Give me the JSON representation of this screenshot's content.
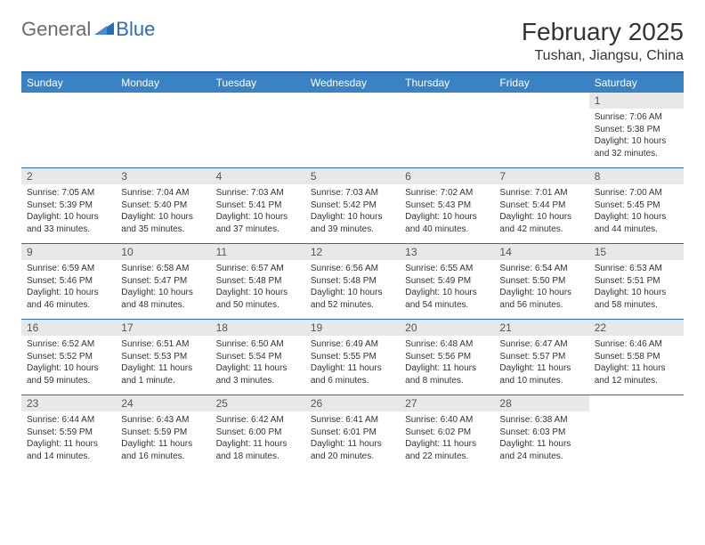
{
  "logo": {
    "general": "General",
    "blue": "Blue"
  },
  "title": "February 2025",
  "location": "Tushan, Jiangsu, China",
  "colors": {
    "header_bg": "#3b82c4",
    "divider": "#2a6db5",
    "day_num_bg": "#e8e8e8",
    "logo_gray": "#6b6b6b",
    "logo_blue": "#2a6db5"
  },
  "day_headers": [
    "Sunday",
    "Monday",
    "Tuesday",
    "Wednesday",
    "Thursday",
    "Friday",
    "Saturday"
  ],
  "weeks": [
    [
      null,
      null,
      null,
      null,
      null,
      null,
      {
        "n": "1",
        "sunrise": "7:06 AM",
        "sunset": "5:38 PM",
        "daylight": "10 hours and 32 minutes."
      }
    ],
    [
      {
        "n": "2",
        "sunrise": "7:05 AM",
        "sunset": "5:39 PM",
        "daylight": "10 hours and 33 minutes."
      },
      {
        "n": "3",
        "sunrise": "7:04 AM",
        "sunset": "5:40 PM",
        "daylight": "10 hours and 35 minutes."
      },
      {
        "n": "4",
        "sunrise": "7:03 AM",
        "sunset": "5:41 PM",
        "daylight": "10 hours and 37 minutes."
      },
      {
        "n": "5",
        "sunrise": "7:03 AM",
        "sunset": "5:42 PM",
        "daylight": "10 hours and 39 minutes."
      },
      {
        "n": "6",
        "sunrise": "7:02 AM",
        "sunset": "5:43 PM",
        "daylight": "10 hours and 40 minutes."
      },
      {
        "n": "7",
        "sunrise": "7:01 AM",
        "sunset": "5:44 PM",
        "daylight": "10 hours and 42 minutes."
      },
      {
        "n": "8",
        "sunrise": "7:00 AM",
        "sunset": "5:45 PM",
        "daylight": "10 hours and 44 minutes."
      }
    ],
    [
      {
        "n": "9",
        "sunrise": "6:59 AM",
        "sunset": "5:46 PM",
        "daylight": "10 hours and 46 minutes."
      },
      {
        "n": "10",
        "sunrise": "6:58 AM",
        "sunset": "5:47 PM",
        "daylight": "10 hours and 48 minutes."
      },
      {
        "n": "11",
        "sunrise": "6:57 AM",
        "sunset": "5:48 PM",
        "daylight": "10 hours and 50 minutes."
      },
      {
        "n": "12",
        "sunrise": "6:56 AM",
        "sunset": "5:48 PM",
        "daylight": "10 hours and 52 minutes."
      },
      {
        "n": "13",
        "sunrise": "6:55 AM",
        "sunset": "5:49 PM",
        "daylight": "10 hours and 54 minutes."
      },
      {
        "n": "14",
        "sunrise": "6:54 AM",
        "sunset": "5:50 PM",
        "daylight": "10 hours and 56 minutes."
      },
      {
        "n": "15",
        "sunrise": "6:53 AM",
        "sunset": "5:51 PM",
        "daylight": "10 hours and 58 minutes."
      }
    ],
    [
      {
        "n": "16",
        "sunrise": "6:52 AM",
        "sunset": "5:52 PM",
        "daylight": "10 hours and 59 minutes."
      },
      {
        "n": "17",
        "sunrise": "6:51 AM",
        "sunset": "5:53 PM",
        "daylight": "11 hours and 1 minute."
      },
      {
        "n": "18",
        "sunrise": "6:50 AM",
        "sunset": "5:54 PM",
        "daylight": "11 hours and 3 minutes."
      },
      {
        "n": "19",
        "sunrise": "6:49 AM",
        "sunset": "5:55 PM",
        "daylight": "11 hours and 6 minutes."
      },
      {
        "n": "20",
        "sunrise": "6:48 AM",
        "sunset": "5:56 PM",
        "daylight": "11 hours and 8 minutes."
      },
      {
        "n": "21",
        "sunrise": "6:47 AM",
        "sunset": "5:57 PM",
        "daylight": "11 hours and 10 minutes."
      },
      {
        "n": "22",
        "sunrise": "6:46 AM",
        "sunset": "5:58 PM",
        "daylight": "11 hours and 12 minutes."
      }
    ],
    [
      {
        "n": "23",
        "sunrise": "6:44 AM",
        "sunset": "5:59 PM",
        "daylight": "11 hours and 14 minutes."
      },
      {
        "n": "24",
        "sunrise": "6:43 AM",
        "sunset": "5:59 PM",
        "daylight": "11 hours and 16 minutes."
      },
      {
        "n": "25",
        "sunrise": "6:42 AM",
        "sunset": "6:00 PM",
        "daylight": "11 hours and 18 minutes."
      },
      {
        "n": "26",
        "sunrise": "6:41 AM",
        "sunset": "6:01 PM",
        "daylight": "11 hours and 20 minutes."
      },
      {
        "n": "27",
        "sunrise": "6:40 AM",
        "sunset": "6:02 PM",
        "daylight": "11 hours and 22 minutes."
      },
      {
        "n": "28",
        "sunrise": "6:38 AM",
        "sunset": "6:03 PM",
        "daylight": "11 hours and 24 minutes."
      },
      null
    ]
  ],
  "labels": {
    "sunrise": "Sunrise: ",
    "sunset": "Sunset: ",
    "daylight": "Daylight: "
  }
}
